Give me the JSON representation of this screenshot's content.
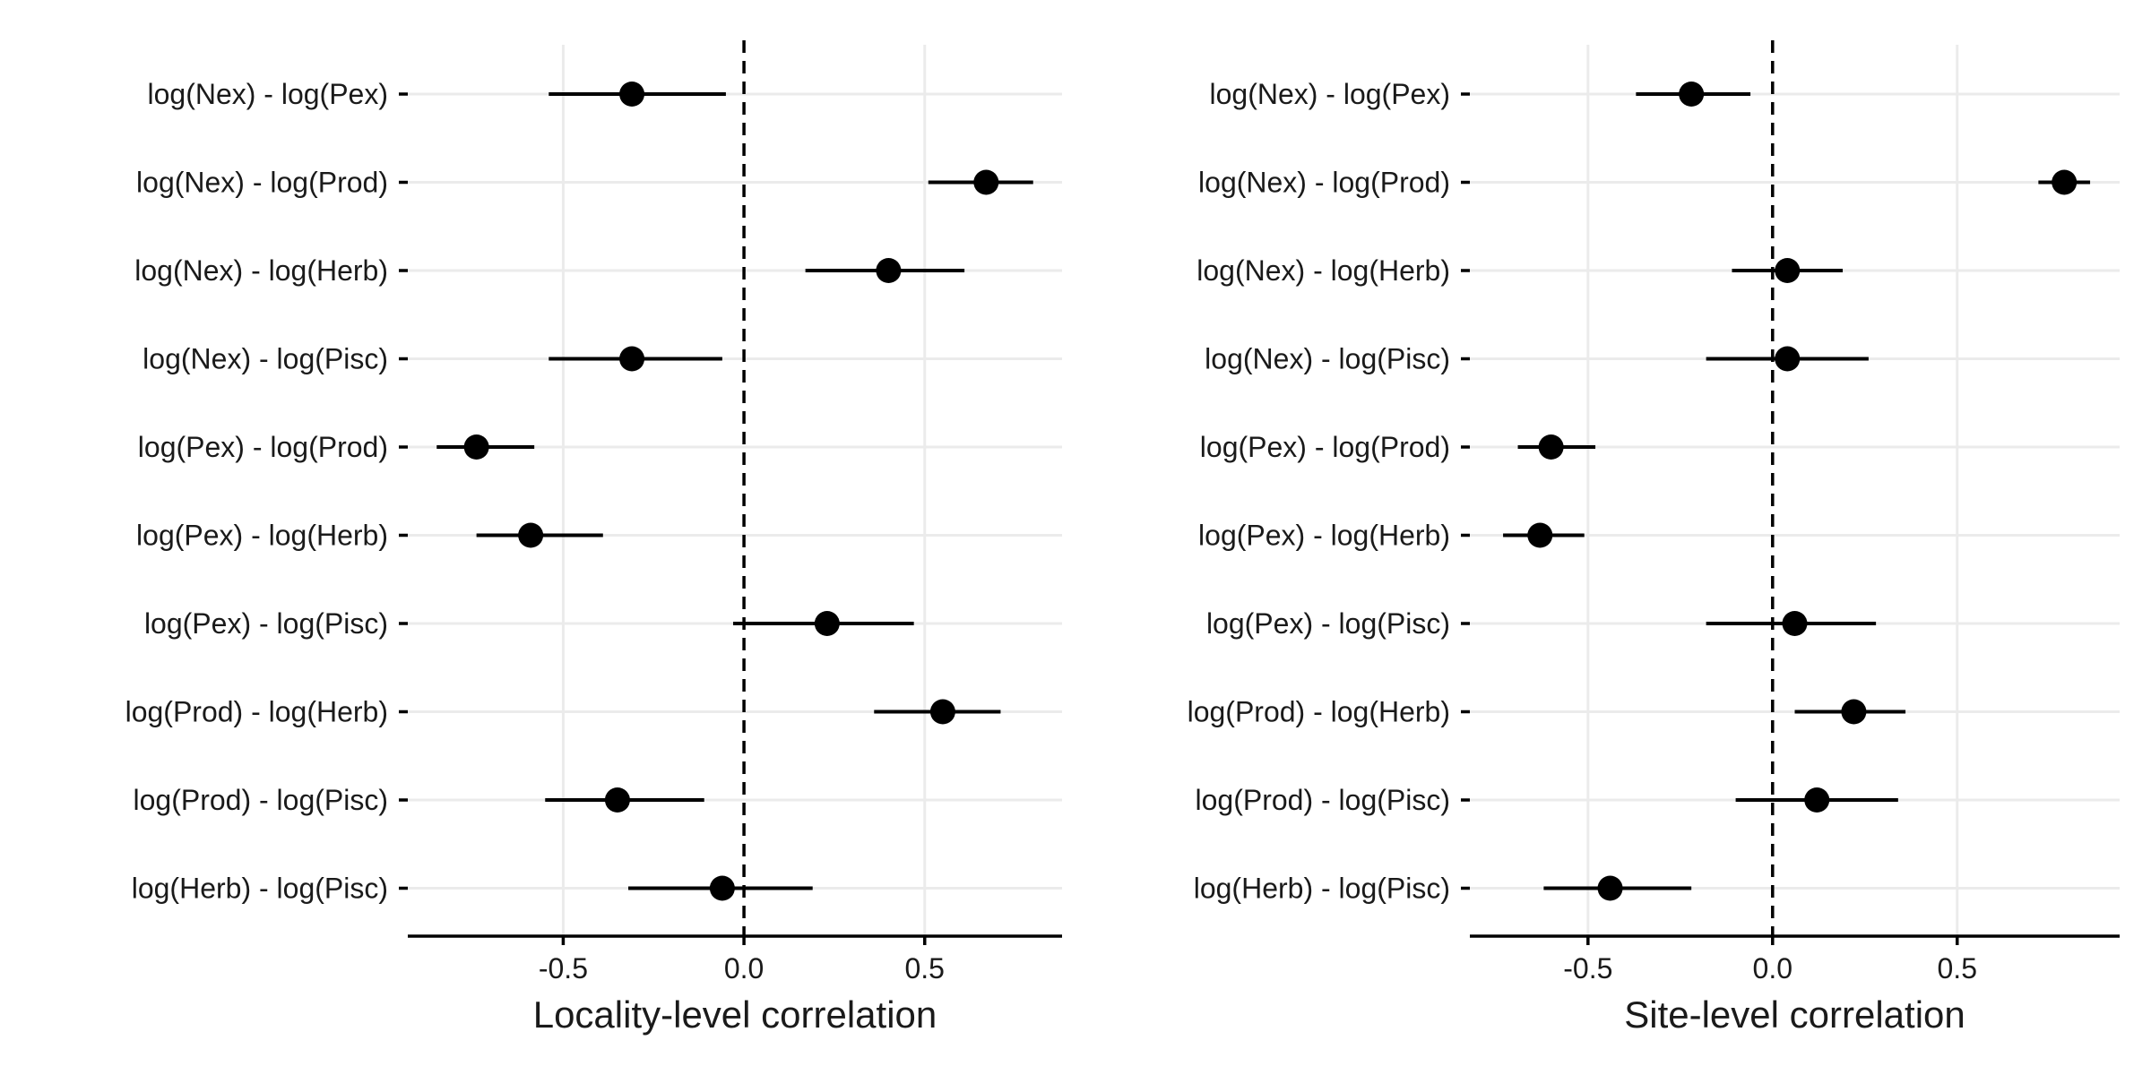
{
  "chart_data": [
    {
      "type": "scatter",
      "title": "",
      "xlabel": "Locality-level correlation",
      "ylabel": "",
      "xlim": [
        -0.93,
        0.88
      ],
      "xticks": [
        -0.5,
        0.0,
        0.5
      ],
      "xtick_labels": [
        "-0.5",
        "0.0",
        "0.5"
      ],
      "reference_line": 0,
      "grid": true,
      "categories": [
        "log(Nex) - log(Pex)",
        "log(Nex) - log(Prod)",
        "log(Nex) - log(Herb)",
        "log(Nex) - log(Pisc)",
        "log(Pex) - log(Prod)",
        "log(Pex) - log(Herb)",
        "log(Pex) - log(Pisc)",
        "log(Prod) - log(Herb)",
        "log(Prod) - log(Pisc)",
        "log(Herb) - log(Pisc)"
      ],
      "estimate": [
        -0.31,
        0.67,
        0.4,
        -0.31,
        -0.74,
        -0.59,
        0.23,
        0.55,
        -0.35,
        -0.06
      ],
      "lower": [
        -0.54,
        0.51,
        0.17,
        -0.54,
        -0.85,
        -0.74,
        -0.03,
        0.36,
        -0.55,
        -0.32
      ],
      "upper": [
        -0.05,
        0.8,
        0.61,
        -0.06,
        -0.58,
        -0.39,
        0.47,
        0.71,
        -0.11,
        0.19
      ]
    },
    {
      "type": "scatter",
      "title": "",
      "xlabel": "Site-level correlation",
      "ylabel": "",
      "xlim": [
        -0.82,
        0.94
      ],
      "xticks": [
        -0.5,
        0.0,
        0.5
      ],
      "xtick_labels": [
        "-0.5",
        "0.0",
        "0.5"
      ],
      "reference_line": 0,
      "grid": true,
      "categories": [
        "log(Nex) - log(Pex)",
        "log(Nex) - log(Prod)",
        "log(Nex) - log(Herb)",
        "log(Nex) - log(Pisc)",
        "log(Pex) - log(Prod)",
        "log(Pex) - log(Herb)",
        "log(Pex) - log(Pisc)",
        "log(Prod) - log(Herb)",
        "log(Prod) - log(Pisc)",
        "log(Herb) - log(Pisc)"
      ],
      "estimate": [
        -0.22,
        0.79,
        0.04,
        0.04,
        -0.6,
        -0.63,
        0.06,
        0.22,
        0.12,
        -0.44
      ],
      "lower": [
        -0.37,
        0.72,
        -0.11,
        -0.18,
        -0.69,
        -0.73,
        -0.18,
        0.06,
        -0.1,
        -0.62
      ],
      "upper": [
        -0.06,
        0.86,
        0.19,
        0.26,
        -0.48,
        -0.51,
        0.28,
        0.36,
        0.34,
        -0.22
      ]
    }
  ]
}
